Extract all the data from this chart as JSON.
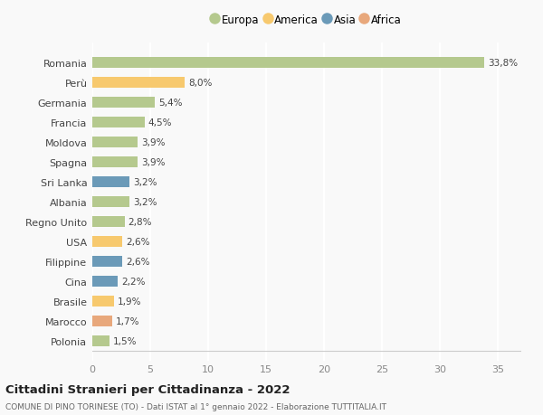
{
  "countries": [
    "Polonia",
    "Marocco",
    "Brasile",
    "Cina",
    "Filippine",
    "USA",
    "Regno Unito",
    "Albania",
    "Sri Lanka",
    "Spagna",
    "Moldova",
    "Francia",
    "Germania",
    "Perù",
    "Romania"
  ],
  "values": [
    1.5,
    1.7,
    1.9,
    2.2,
    2.6,
    2.6,
    2.8,
    3.2,
    3.2,
    3.9,
    3.9,
    4.5,
    5.4,
    8.0,
    33.8
  ],
  "labels": [
    "1,5%",
    "1,7%",
    "1,9%",
    "2,2%",
    "2,6%",
    "2,6%",
    "2,8%",
    "3,2%",
    "3,2%",
    "3,9%",
    "3,9%",
    "4,5%",
    "5,4%",
    "8,0%",
    "33,8%"
  ],
  "colors": [
    "#b5c98e",
    "#e8a87c",
    "#f7c96e",
    "#6b9ab8",
    "#6b9ab8",
    "#f7c96e",
    "#b5c98e",
    "#b5c98e",
    "#6b9ab8",
    "#b5c98e",
    "#b5c98e",
    "#b5c98e",
    "#b5c98e",
    "#f7c96e",
    "#b5c98e"
  ],
  "legend_labels": [
    "Europa",
    "America",
    "Asia",
    "Africa"
  ],
  "legend_colors": [
    "#b5c98e",
    "#f7c96e",
    "#6b9ab8",
    "#e8a87c"
  ],
  "title": "Cittadini Stranieri per Cittadinanza - 2022",
  "subtitle": "COMUNE DI PINO TORINESE (TO) - Dati ISTAT al 1° gennaio 2022 - Elaborazione TUTTITALIA.IT",
  "xlim": [
    0,
    37
  ],
  "xticks": [
    0,
    5,
    10,
    15,
    20,
    25,
    30,
    35
  ],
  "bg_color": "#f9f9f9",
  "grid_color": "#ffffff",
  "bar_height": 0.55
}
